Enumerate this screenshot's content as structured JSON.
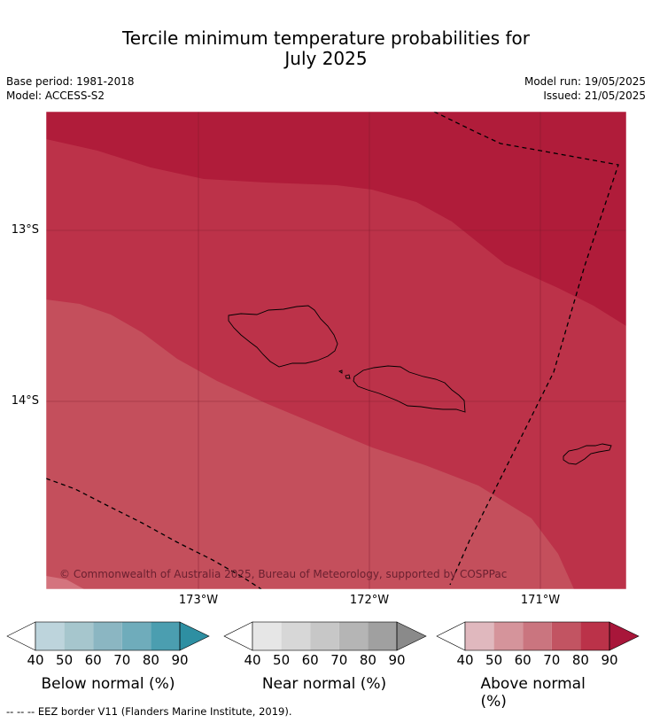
{
  "title": {
    "line1": "Tercile minimum temperature probabilities for",
    "line2": "July 2025"
  },
  "meta": {
    "base_period": "Base period: 1981-2018",
    "model": "Model: ACCESS-S2",
    "model_run": "Model run: 19/05/2025",
    "issued": "Issued: 21/05/2025"
  },
  "map": {
    "latitude_labels": [
      "13°S",
      "14°S"
    ],
    "longitude_labels": [
      "173°W",
      "172°W",
      "171°W"
    ],
    "copyright": "© Commonwealth of Australia 2025, Bureau of Meteorology, supported by COSPPac",
    "colors": {
      "above_90": "#b01c3a",
      "above_80": "#bc3249",
      "above_70": "#c44f5c",
      "above_60": "#d4747e"
    }
  },
  "colorbars": [
    {
      "label": "Below normal (%)",
      "ticks": [
        "40",
        "50",
        "60",
        "70",
        "80",
        "90"
      ],
      "colors": [
        "#ffffff",
        "#bdd4dc",
        "#a6c6cd",
        "#8bb6c2",
        "#6facbb",
        "#4b9eb0",
        "#2e8fa2"
      ]
    },
    {
      "label": "Near normal (%)",
      "ticks": [
        "40",
        "50",
        "60",
        "70",
        "80",
        "90"
      ],
      "colors": [
        "#ffffff",
        "#e6e6e6",
        "#d7d7d7",
        "#c7c7c7",
        "#b5b5b5",
        "#a0a0a0",
        "#8a8a8a"
      ]
    },
    {
      "label": "Above normal (%)",
      "ticks": [
        "40",
        "50",
        "60",
        "70",
        "80",
        "90"
      ],
      "colors": [
        "#ffffff",
        "#e0b8be",
        "#d5949b",
        "#ca757f",
        "#c25462",
        "#bb3249",
        "#a8163a"
      ]
    }
  ],
  "footnote": "--  --  -- EEZ border V11 (Flanders Marine Institute, 2019)."
}
